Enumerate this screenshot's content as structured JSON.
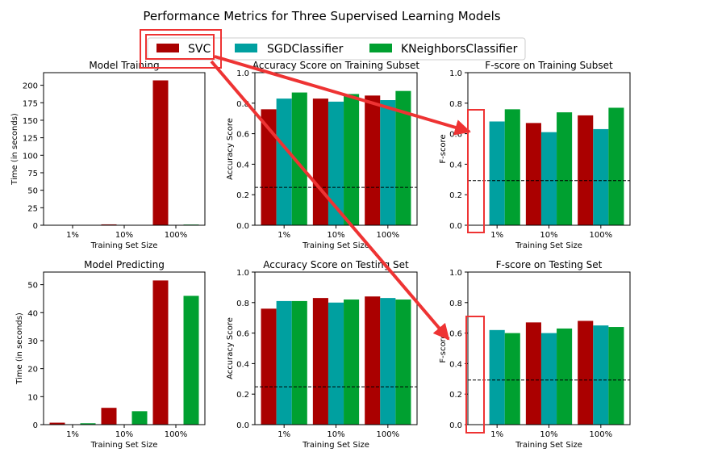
{
  "figure": {
    "title": "Performance Metrics for Three Supervised Learning Models"
  },
  "legend": {
    "placement": "top-center",
    "entries": [
      {
        "label": "SVC",
        "color": "#aa0000"
      },
      {
        "label": "SGDClassifier",
        "color": "#00a0a0"
      },
      {
        "label": "KNeighborsClassifier",
        "color": "#00a030"
      }
    ]
  },
  "annotation_color": "#ee3333",
  "chart_data": [
    {
      "type": "bar",
      "title": "Model Training",
      "xlabel": "Training Set Size",
      "ylabel": "Time (in seconds)",
      "categories": [
        "1%",
        "10%",
        "100%"
      ],
      "ylim": [
        0,
        218
      ],
      "yticks": [
        0,
        25,
        50,
        75,
        100,
        125,
        150,
        175,
        200
      ],
      "series": [
        {
          "name": "SVC",
          "values": [
            0.1,
            1.2,
            207
          ]
        },
        {
          "name": "SGDClassifier",
          "values": [
            0.05,
            0.1,
            0.3
          ]
        },
        {
          "name": "KNeighborsClassifier",
          "values": [
            0.1,
            0.2,
            1.0
          ]
        }
      ]
    },
    {
      "type": "bar",
      "title": "Accuracy Score on Training Subset",
      "xlabel": "Training Set Size",
      "ylabel": "Accuracy Score",
      "categories": [
        "1%",
        "10%",
        "100%"
      ],
      "ylim": [
        0,
        1.0
      ],
      "yticks": [
        0.0,
        0.2,
        0.4,
        0.6,
        0.8,
        1.0
      ],
      "baseline": 0.248,
      "series": [
        {
          "name": "SVC",
          "values": [
            0.76,
            0.83,
            0.85
          ]
        },
        {
          "name": "SGDClassifier",
          "values": [
            0.83,
            0.81,
            0.82
          ]
        },
        {
          "name": "KNeighborsClassifier",
          "values": [
            0.87,
            0.86,
            0.88
          ]
        }
      ]
    },
    {
      "type": "bar",
      "title": "F-score on Training Subset",
      "xlabel": "Training Set Size",
      "ylabel": "F-score",
      "categories": [
        "1%",
        "10%",
        "100%"
      ],
      "ylim": [
        0,
        1.0
      ],
      "yticks": [
        0.0,
        0.2,
        0.4,
        0.6,
        0.8,
        1.0
      ],
      "baseline": 0.292,
      "series": [
        {
          "name": "SVC",
          "values": [
            0.0,
            0.67,
            0.72
          ]
        },
        {
          "name": "SGDClassifier",
          "values": [
            0.68,
            0.61,
            0.63
          ]
        },
        {
          "name": "KNeighborsClassifier",
          "values": [
            0.76,
            0.74,
            0.77
          ]
        }
      ]
    },
    {
      "type": "bar",
      "title": "Model Predicting",
      "xlabel": "Training Set Size",
      "ylabel": "Time (in seconds)",
      "categories": [
        "1%",
        "10%",
        "100%"
      ],
      "ylim": [
        0,
        54.5
      ],
      "yticks": [
        0,
        10,
        20,
        30,
        40,
        50
      ],
      "series": [
        {
          "name": "SVC",
          "values": [
            0.7,
            6.0,
            51.5
          ]
        },
        {
          "name": "SGDClassifier",
          "values": [
            0.05,
            0.05,
            0.05
          ]
        },
        {
          "name": "KNeighborsClassifier",
          "values": [
            0.5,
            4.8,
            46.0
          ]
        }
      ]
    },
    {
      "type": "bar",
      "title": "Accuracy Score on Testing Set",
      "xlabel": "Training Set Size",
      "ylabel": "Accuracy Score",
      "categories": [
        "1%",
        "10%",
        "100%"
      ],
      "ylim": [
        0,
        1.0
      ],
      "yticks": [
        0.0,
        0.2,
        0.4,
        0.6,
        0.8,
        1.0
      ],
      "baseline": 0.248,
      "series": [
        {
          "name": "SVC",
          "values": [
            0.76,
            0.83,
            0.84
          ]
        },
        {
          "name": "SGDClassifier",
          "values": [
            0.81,
            0.8,
            0.83
          ]
        },
        {
          "name": "KNeighborsClassifier",
          "values": [
            0.81,
            0.82,
            0.82
          ]
        }
      ]
    },
    {
      "type": "bar",
      "title": "F-score on Testing Set",
      "xlabel": "Training Set Size",
      "ylabel": "F-score",
      "categories": [
        "1%",
        "10%",
        "100%"
      ],
      "ylim": [
        0,
        1.0
      ],
      "yticks": [
        0.0,
        0.2,
        0.4,
        0.6,
        0.8,
        1.0
      ],
      "baseline": 0.292,
      "series": [
        {
          "name": "SVC",
          "values": [
            0.0,
            0.67,
            0.68
          ]
        },
        {
          "name": "SGDClassifier",
          "values": [
            0.62,
            0.6,
            0.65
          ]
        },
        {
          "name": "KNeighborsClassifier",
          "values": [
            0.6,
            0.63,
            0.64
          ]
        }
      ]
    }
  ]
}
